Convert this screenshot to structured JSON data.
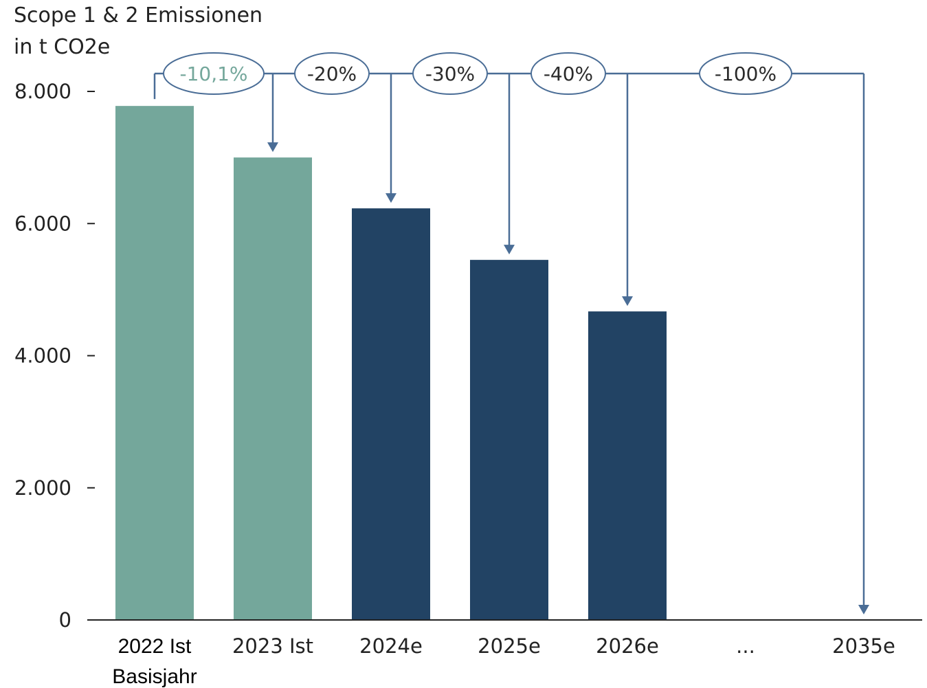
{
  "chart_data": {
    "type": "bar",
    "ylabel_line1": "Scope 1 & 2 Emissionen",
    "ylabel_line2": "in t CO2e",
    "ylim": [
      0,
      8000
    ],
    "yticks": [
      0,
      2000,
      4000,
      6000,
      8000
    ],
    "ytick_labels": [
      "0",
      "2.000",
      "4.000",
      "6.000",
      "8.000"
    ],
    "categories": [
      "2022 Ist",
      "2023 Ist",
      "2024e",
      "2025e",
      "2026e",
      "...",
      "2035e"
    ],
    "category_sublabels": [
      "Basisjahr",
      "",
      "",
      "",
      "",
      "",
      ""
    ],
    "values": [
      7780,
      7000,
      6230,
      5450,
      4670,
      null,
      0
    ],
    "bar_colors": [
      "#74a79b",
      "#74a79b",
      "#224364",
      "#224364",
      "#224364",
      null,
      null
    ],
    "reductions": [
      {
        "label": "-10,1%",
        "target_category": "2023 Ist",
        "color": "#74a79b"
      },
      {
        "label": "-20%",
        "target_category": "2024e",
        "color": "#2b2b2b"
      },
      {
        "label": "-30%",
        "target_category": "2025e",
        "color": "#2b2b2b"
      },
      {
        "label": "-40%",
        "target_category": "2026e",
        "color": "#2b2b2b"
      },
      {
        "label": "-100%",
        "target_category": "2035e",
        "color": "#2b2b2b"
      }
    ],
    "connector_color": "#4a6d96",
    "grid": false,
    "legend": "none"
  }
}
